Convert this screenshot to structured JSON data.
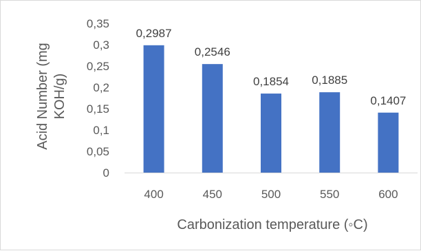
{
  "chart_data": {
    "type": "bar",
    "categories": [
      "400",
      "450",
      "500",
      "550",
      "600"
    ],
    "values": [
      0.2987,
      0.2546,
      0.1854,
      0.1885,
      0.1407
    ],
    "data_labels": [
      "0,2987",
      "0,2546",
      "0,1854",
      "0,1885",
      "0,1407"
    ],
    "yticks": [
      "0",
      "0,05",
      "0,1",
      "0,15",
      "0,2",
      "0,25",
      "0,3",
      "0,35"
    ],
    "ylim": [
      0,
      0.35
    ],
    "xlabel": "Carbonization temperature (◦C)",
    "ylabel_line1": "Acid Number  (mg",
    "ylabel_line2": "KOH/g)",
    "bar_color": "#4472c4",
    "grid": false,
    "legend": "none"
  }
}
